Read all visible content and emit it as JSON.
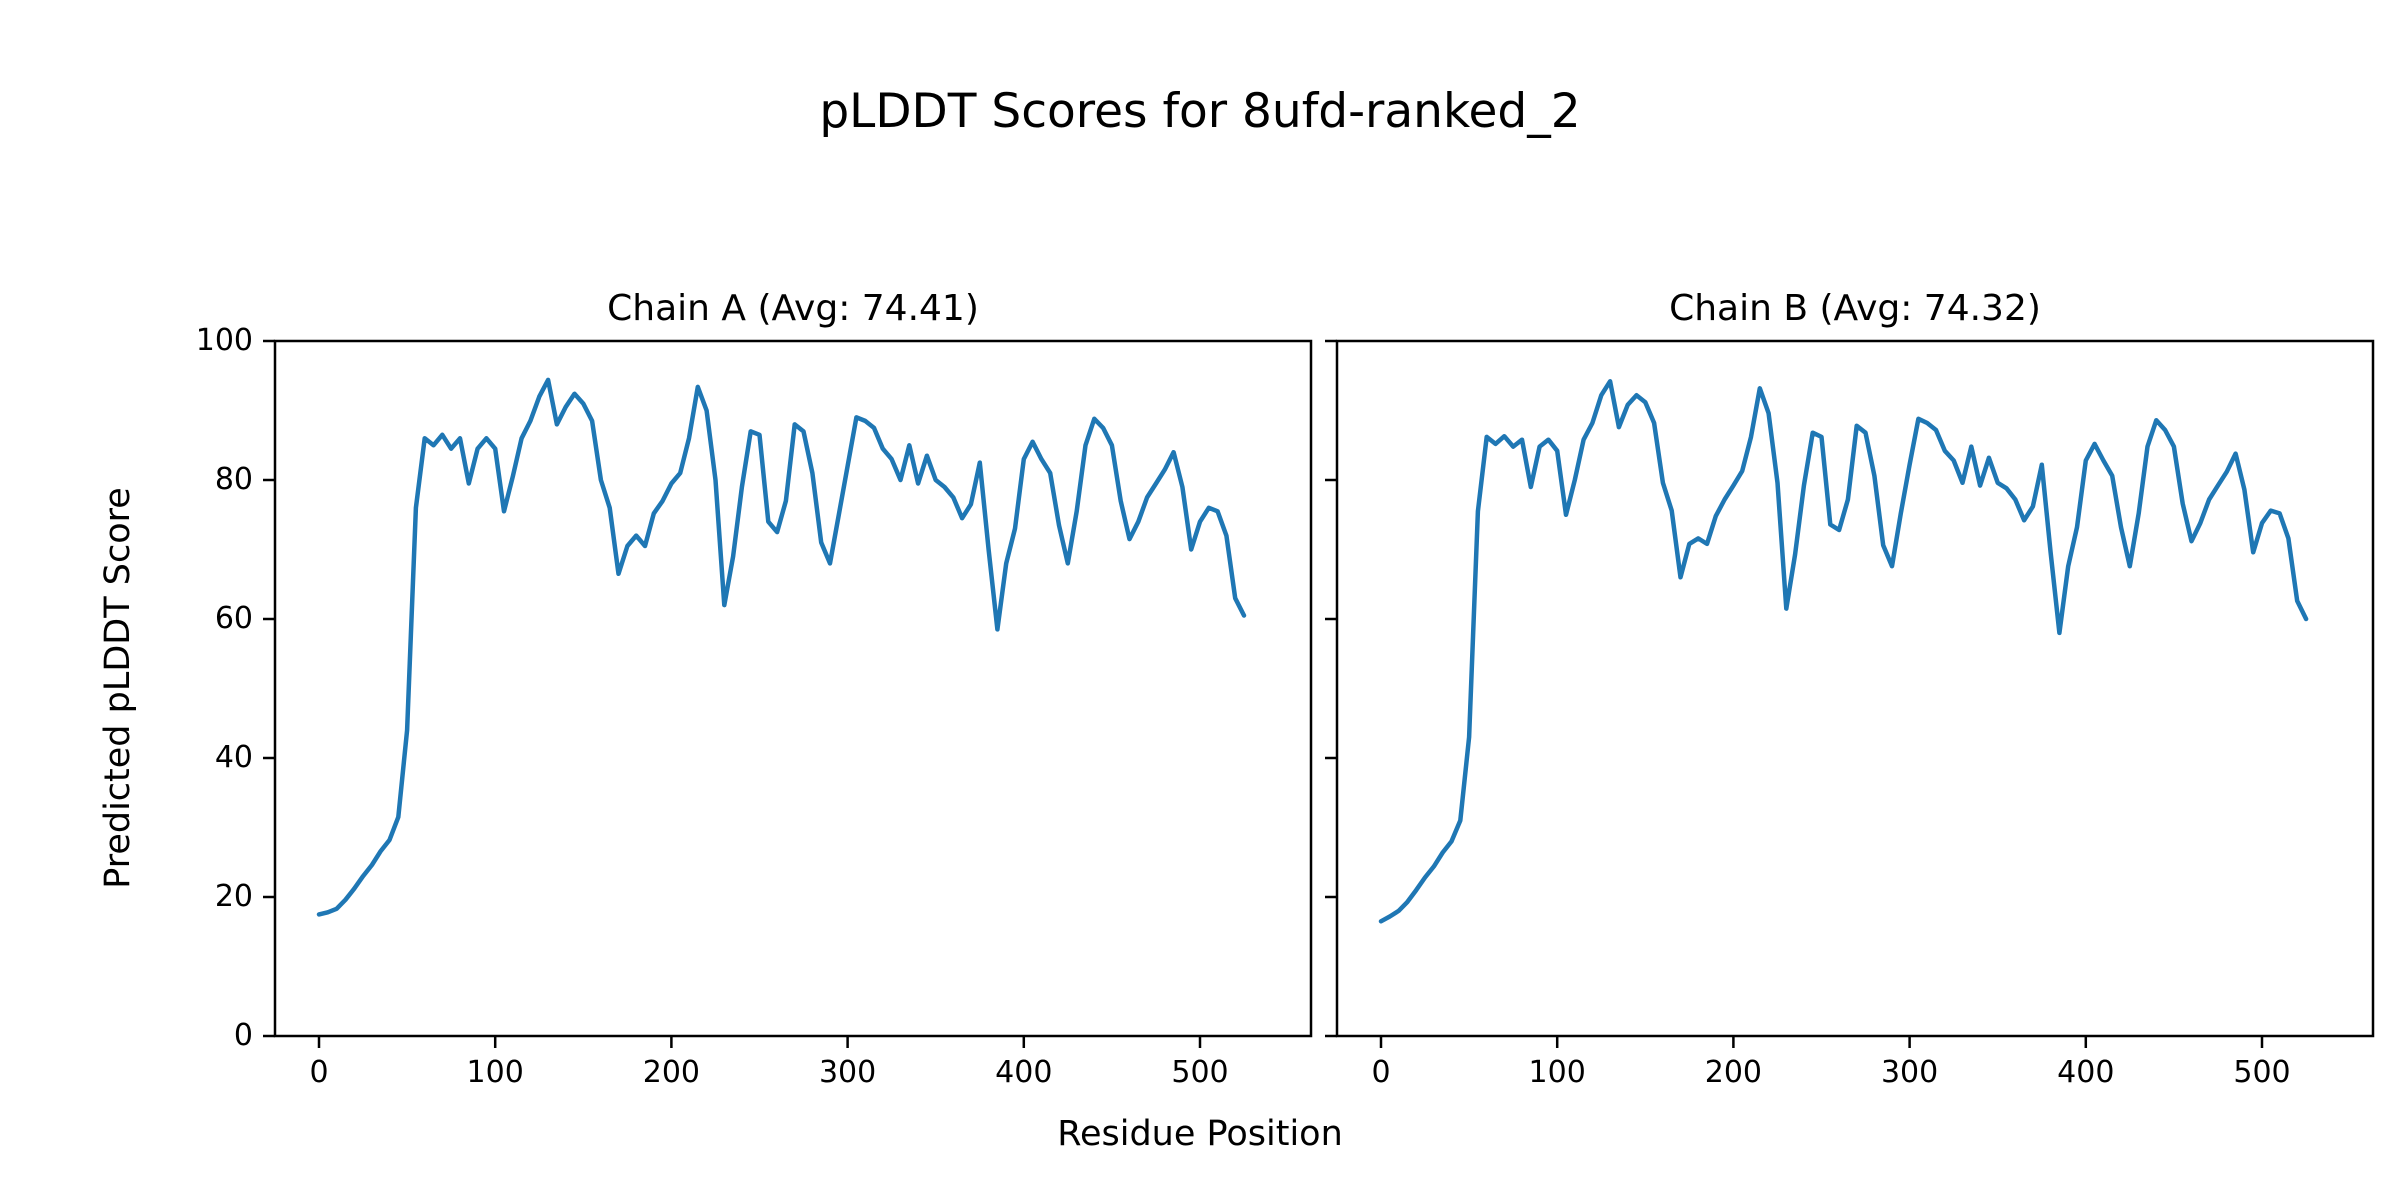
{
  "figure": {
    "title": "pLDDT Scores for 8ufd-ranked_2",
    "xlabel": "Residue Position",
    "ylabel": "Predicted pLDDT Score",
    "background_color": "#ffffff",
    "line_color": "#1f77b4",
    "axis_color": "#000000"
  },
  "chart_data": {
    "type": "line",
    "grid": false,
    "legend": "none",
    "ylim": [
      0,
      100
    ],
    "xlim": [
      -30,
      560
    ],
    "xticks": [
      0,
      100,
      200,
      300,
      400,
      500
    ],
    "yticks": [
      0,
      20,
      40,
      60,
      80,
      100
    ],
    "x": [
      0,
      5,
      10,
      15,
      20,
      25,
      30,
      35,
      40,
      45,
      50,
      55,
      60,
      65,
      70,
      75,
      80,
      85,
      90,
      95,
      100,
      105,
      110,
      115,
      120,
      125,
      130,
      135,
      140,
      145,
      150,
      155,
      160,
      165,
      170,
      175,
      180,
      185,
      190,
      195,
      200,
      205,
      210,
      215,
      220,
      225,
      230,
      235,
      240,
      245,
      250,
      255,
      260,
      265,
      270,
      275,
      280,
      285,
      290,
      295,
      300,
      305,
      310,
      315,
      320,
      325,
      330,
      335,
      340,
      345,
      350,
      355,
      360,
      365,
      370,
      375,
      380,
      385,
      390,
      395,
      400,
      405,
      410,
      415,
      420,
      425,
      430,
      435,
      440,
      445,
      450,
      455,
      460,
      465,
      470,
      475,
      480,
      485,
      490,
      495,
      500,
      505,
      510,
      515,
      520,
      525
    ],
    "series": [
      {
        "name": "Chain A",
        "title": "Chain A (Avg: 74.41)",
        "avg": 74.41,
        "values": [
          17.5,
          17.8,
          18.3,
          19.6,
          21.2,
          23.0,
          24.6,
          26.6,
          28.2,
          31.5,
          44.0,
          76.0,
          86.0,
          85.0,
          86.5,
          84.5,
          86.0,
          79.5,
          84.5,
          86.0,
          84.5,
          75.5,
          80.5,
          86.0,
          88.5,
          92.0,
          94.4,
          88.0,
          90.5,
          92.4,
          91.0,
          88.5,
          80.0,
          76.0,
          66.5,
          70.5,
          72.0,
          70.5,
          75.2,
          77.0,
          79.5,
          81.0,
          86.0,
          93.4,
          90.0,
          80.0,
          62.0,
          69.0,
          79.0,
          87.0,
          86.5,
          74.0,
          72.5,
          77.0,
          88.0,
          87.0,
          81.0,
          71.0,
          68.0,
          75.0,
          82.0,
          89.0,
          88.5,
          87.5,
          84.5,
          83.0,
          80.0,
          85.0,
          79.5,
          83.5,
          80.0,
          79.0,
          77.5,
          74.5,
          76.5,
          82.5,
          70.0,
          58.5,
          68.0,
          73.0,
          83.0,
          85.5,
          83.0,
          81.0,
          73.5,
          68.0,
          75.5,
          85.0,
          88.8,
          87.5,
          85.0,
          77.0,
          71.5,
          74.0,
          77.5,
          79.5,
          81.5,
          84.0,
          79.0,
          70.0,
          74.0,
          76.0,
          75.5,
          72.0,
          63.0,
          60.5
        ]
      },
      {
        "name": "Chain B",
        "title": "Chain B (Avg: 74.32)",
        "avg": 74.32,
        "values": [
          16.5,
          17.2,
          18.0,
          19.3,
          21.0,
          22.8,
          24.4,
          26.4,
          28.0,
          31.0,
          43.0,
          75.5,
          86.2,
          85.2,
          86.3,
          84.8,
          85.8,
          79.0,
          84.8,
          85.8,
          84.2,
          75.0,
          80.0,
          85.8,
          88.2,
          92.2,
          94.2,
          87.6,
          90.8,
          92.2,
          91.2,
          88.2,
          79.6,
          75.6,
          66.0,
          70.8,
          71.6,
          70.8,
          74.8,
          77.2,
          79.2,
          81.3,
          86.2,
          93.2,
          89.6,
          79.6,
          61.5,
          69.3,
          79.2,
          86.8,
          86.2,
          73.6,
          72.8,
          77.2,
          87.8,
          86.8,
          80.6,
          70.6,
          67.6,
          75.2,
          82.2,
          88.8,
          88.2,
          87.2,
          84.2,
          82.8,
          79.6,
          84.8,
          79.2,
          83.2,
          79.6,
          78.8,
          77.2,
          74.2,
          76.2,
          82.2,
          69.6,
          58.0,
          67.6,
          73.2,
          82.8,
          85.2,
          82.8,
          80.6,
          73.2,
          67.6,
          75.2,
          84.8,
          88.6,
          87.2,
          84.8,
          76.6,
          71.2,
          73.8,
          77.2,
          79.2,
          81.2,
          83.8,
          78.6,
          69.6,
          73.8,
          75.6,
          75.2,
          71.6,
          62.6,
          60.0
        ]
      }
    ]
  }
}
